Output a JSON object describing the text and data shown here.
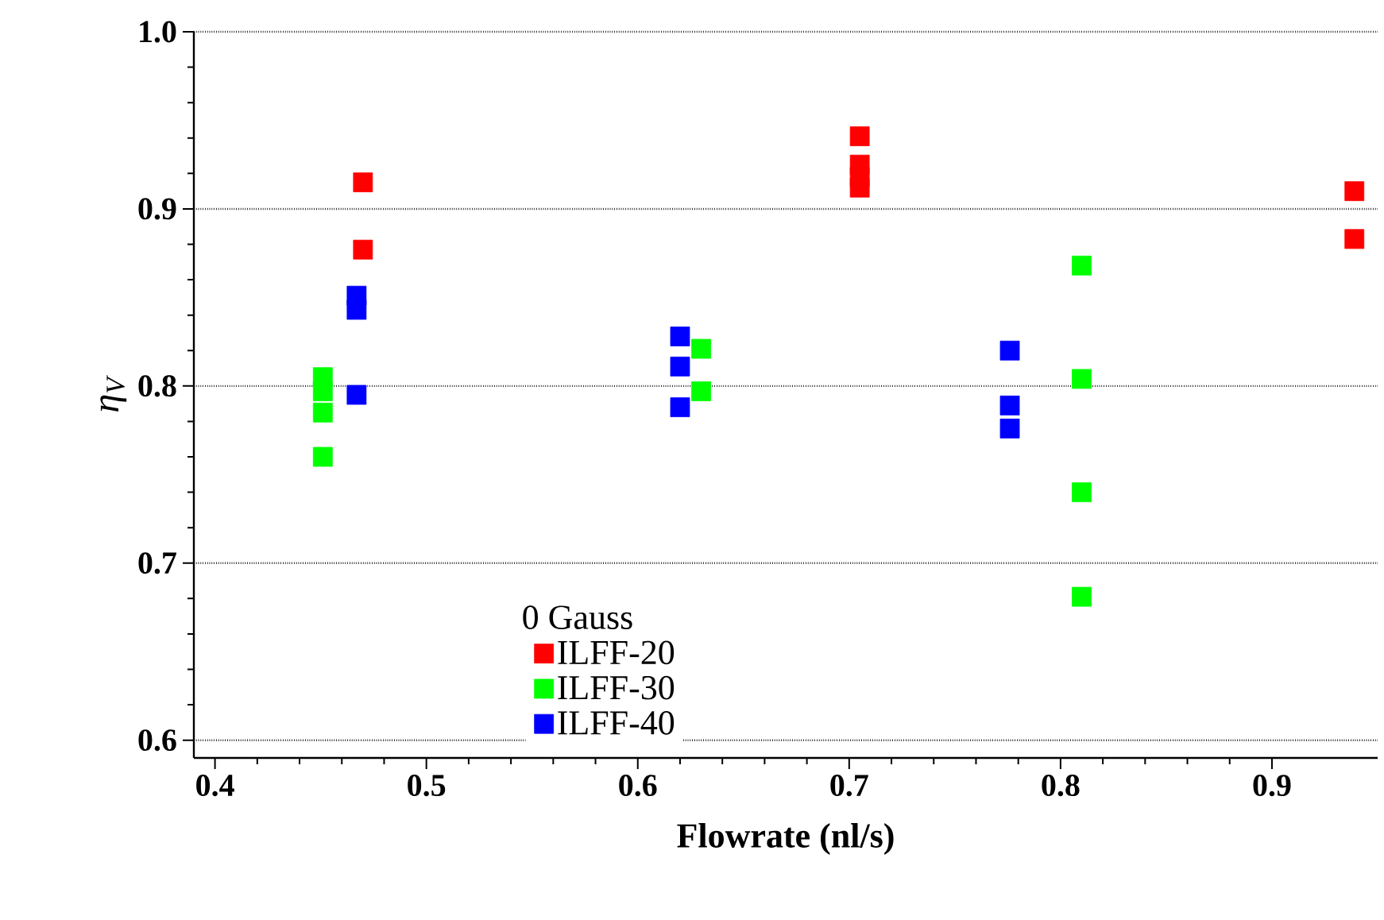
{
  "chart_data": {
    "type": "scatter",
    "xlabel": "Flowrate (nl/s)",
    "ylabel": "η$_{V}$",
    "legend_title": "0 Gauss",
    "legend": "bottom left",
    "grid": "y",
    "marker": "square",
    "xlim": [
      0.39,
      0.95
    ],
    "ylim": [
      0.59,
      1.0
    ],
    "xticks": [
      0.4,
      0.5,
      0.6,
      0.7,
      0.8,
      0.9
    ],
    "yticks": [
      0.6,
      0.7,
      0.8,
      0.9,
      {
        "value": 1.0,
        "label": "1.0"
      }
    ],
    "series": [
      {
        "name": "ILFF-20",
        "color": "#ff0000",
        "x": [
          0.47,
          0.47,
          0.705,
          0.705,
          0.705,
          0.705,
          0.939,
          0.939
        ],
        "values": [
          0.915,
          0.877,
          0.941,
          0.925,
          0.918,
          0.912,
          0.91,
          0.883
        ]
      },
      {
        "name": "ILFF-30",
        "color": "#00ff00",
        "x": [
          0.451,
          0.451,
          0.451,
          0.451,
          0.63,
          0.63,
          0.81,
          0.81,
          0.81,
          0.81
        ],
        "values": [
          0.805,
          0.797,
          0.785,
          0.76,
          0.821,
          0.797,
          0.868,
          0.804,
          0.74,
          0.681
        ]
      },
      {
        "name": "ILFF-40",
        "color": "#0000ff",
        "x": [
          0.467,
          0.467,
          0.467,
          0.62,
          0.62,
          0.62,
          0.776,
          0.776,
          0.776
        ],
        "values": [
          0.851,
          0.843,
          0.795,
          0.828,
          0.811,
          0.788,
          0.82,
          0.789,
          0.776
        ]
      }
    ]
  }
}
